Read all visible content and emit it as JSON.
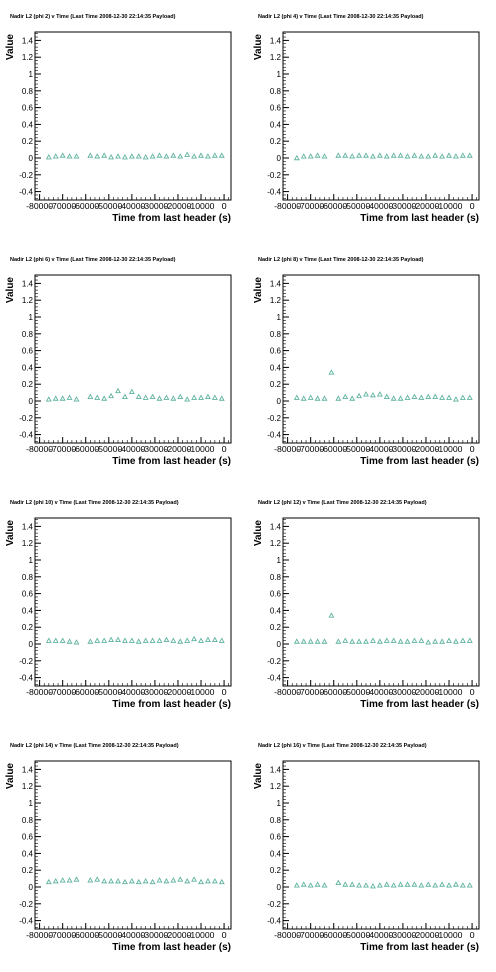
{
  "chart_data": [
    {
      "type": "scatter",
      "title": "Nadir L2 (phi 2) v Time (Last Time 2008-12-30 22:14:35 Payload)",
      "xlabel": "Time from last header (s)",
      "ylabel": "Value",
      "xlim": [
        -82000,
        3000
      ],
      "ylim": [
        -0.5,
        1.5
      ],
      "xticks": [
        -80000,
        -70000,
        -60000,
        -50000,
        -40000,
        -30000,
        -20000,
        -10000,
        0
      ],
      "xtick_labels": [
        "-80000",
        "-70000",
        "-60000",
        "-50000",
        "-40000",
        "-30000",
        "-20000",
        "-10000",
        "0"
      ],
      "yticks": [
        -0.4,
        -0.2,
        0,
        0.2,
        0.4,
        0.6,
        0.8,
        1,
        1.2,
        1.4
      ],
      "ytick_labels": [
        "-0.4",
        "-0.2",
        "0",
        "0.2",
        "0.4",
        "0.6",
        "0.8",
        "1",
        "1.2",
        "1.4"
      ],
      "marker_color": "#5fb3a0",
      "x": [
        -76000,
        -73000,
        -70000,
        -67000,
        -64000,
        -58000,
        -55000,
        -52000,
        -49000,
        -46000,
        -43000,
        -40000,
        -37000,
        -34000,
        -31000,
        -28000,
        -25000,
        -22000,
        -19000,
        -16000,
        -13000,
        -10000,
        -7000,
        -4000,
        -1000
      ],
      "y": [
        0.01,
        0.02,
        0.03,
        0.02,
        0.02,
        0.03,
        0.02,
        0.03,
        0.01,
        0.02,
        0.01,
        0.02,
        0.02,
        0.01,
        0.02,
        0.03,
        0.02,
        0.03,
        0.02,
        0.04,
        0.02,
        0.03,
        0.02,
        0.03,
        0.03
      ]
    },
    {
      "type": "scatter",
      "title": "Nadir L2 (phi 4) v Time (Last Time 2008-12-30 22:14:35 Payload)",
      "xlabel": "Time from last header (s)",
      "ylabel": "Value",
      "xlim": [
        -82000,
        3000
      ],
      "ylim": [
        -0.5,
        1.5
      ],
      "xticks": [
        -80000,
        -70000,
        -60000,
        -50000,
        -40000,
        -30000,
        -20000,
        -10000,
        0
      ],
      "xtick_labels": [
        "-80000",
        "-70000",
        "-60000",
        "-50000",
        "-40000",
        "-30000",
        "-20000",
        "-10000",
        "0"
      ],
      "yticks": [
        -0.4,
        -0.2,
        0,
        0.2,
        0.4,
        0.6,
        0.8,
        1,
        1.2,
        1.4
      ],
      "ytick_labels": [
        "-0.4",
        "-0.2",
        "0",
        "0.2",
        "0.4",
        "0.6",
        "0.8",
        "1",
        "1.2",
        "1.4"
      ],
      "marker_color": "#5fb3a0",
      "x": [
        -76000,
        -73000,
        -70000,
        -67000,
        -64000,
        -58000,
        -55000,
        -52000,
        -49000,
        -46000,
        -43000,
        -40000,
        -37000,
        -34000,
        -31000,
        -28000,
        -25000,
        -22000,
        -19000,
        -16000,
        -13000,
        -10000,
        -7000,
        -4000,
        -1000
      ],
      "y": [
        0.0,
        0.02,
        0.02,
        0.03,
        0.02,
        0.03,
        0.03,
        0.02,
        0.03,
        0.03,
        0.02,
        0.03,
        0.02,
        0.03,
        0.03,
        0.02,
        0.03,
        0.02,
        0.02,
        0.03,
        0.02,
        0.03,
        0.02,
        0.03,
        0.03
      ]
    },
    {
      "type": "scatter",
      "title": "Nadir L2 (phi 6) v Time (Last Time 2008-12-30 22:14:35 Payload)",
      "xlabel": "Time from last header (s)",
      "ylabel": "Value",
      "xlim": [
        -82000,
        3000
      ],
      "ylim": [
        -0.5,
        1.5
      ],
      "xticks": [
        -80000,
        -70000,
        -60000,
        -50000,
        -40000,
        -30000,
        -20000,
        -10000,
        0
      ],
      "xtick_labels": [
        "-80000",
        "-70000",
        "-60000",
        "-50000",
        "-40000",
        "-30000",
        "-20000",
        "-10000",
        "0"
      ],
      "yticks": [
        -0.4,
        -0.2,
        0,
        0.2,
        0.4,
        0.6,
        0.8,
        1,
        1.2,
        1.4
      ],
      "ytick_labels": [
        "-0.4",
        "-0.2",
        "0",
        "0.2",
        "0.4",
        "0.6",
        "0.8",
        "1",
        "1.2",
        "1.4"
      ],
      "marker_color": "#5fb3a0",
      "x": [
        -76000,
        -73000,
        -70000,
        -67000,
        -64000,
        -58000,
        -55000,
        -52000,
        -49000,
        -46000,
        -43000,
        -40000,
        -37000,
        -34000,
        -31000,
        -28000,
        -25000,
        -22000,
        -19000,
        -16000,
        -13000,
        -10000,
        -7000,
        -4000,
        -1000
      ],
      "y": [
        0.02,
        0.03,
        0.03,
        0.04,
        0.02,
        0.05,
        0.04,
        0.03,
        0.06,
        0.12,
        0.05,
        0.11,
        0.05,
        0.04,
        0.05,
        0.03,
        0.04,
        0.03,
        0.05,
        0.02,
        0.04,
        0.04,
        0.05,
        0.04,
        0.03
      ]
    },
    {
      "type": "scatter",
      "title": "Nadir L2 (phi 8) v Time (Last Time 2008-12-30 22:14:35 Payload)",
      "xlabel": "Time from last header (s)",
      "ylabel": "Value",
      "xlim": [
        -82000,
        3000
      ],
      "ylim": [
        -0.5,
        1.5
      ],
      "xticks": [
        -80000,
        -70000,
        -60000,
        -50000,
        -40000,
        -30000,
        -20000,
        -10000,
        0
      ],
      "xtick_labels": [
        "-80000",
        "-70000",
        "-60000",
        "-50000",
        "-40000",
        "-30000",
        "-20000",
        "-10000",
        "0"
      ],
      "yticks": [
        -0.4,
        -0.2,
        0,
        0.2,
        0.4,
        0.6,
        0.8,
        1,
        1.2,
        1.4
      ],
      "ytick_labels": [
        "-0.4",
        "-0.2",
        "0",
        "0.2",
        "0.4",
        "0.6",
        "0.8",
        "1",
        "1.2",
        "1.4"
      ],
      "marker_color": "#5fb3a0",
      "x": [
        -76000,
        -73000,
        -70000,
        -67000,
        -64000,
        -61000,
        -58000,
        -55000,
        -52000,
        -49000,
        -46000,
        -43000,
        -40000,
        -37000,
        -34000,
        -31000,
        -28000,
        -25000,
        -22000,
        -19000,
        -16000,
        -13000,
        -10000,
        -7000,
        -4000,
        -1000
      ],
      "y": [
        0.04,
        0.03,
        0.04,
        0.03,
        0.03,
        0.34,
        0.03,
        0.05,
        0.03,
        0.06,
        0.08,
        0.07,
        0.08,
        0.05,
        0.03,
        0.03,
        0.04,
        0.05,
        0.04,
        0.05,
        0.05,
        0.04,
        0.04,
        0.02,
        0.04,
        0.04
      ]
    },
    {
      "type": "scatter",
      "title": "Nadir L2 (phi 10) v Time (Last Time 2008-12-30 22:14:35 Payload)",
      "xlabel": "Time from last header (s)",
      "ylabel": "Value",
      "xlim": [
        -82000,
        3000
      ],
      "ylim": [
        -0.5,
        1.5
      ],
      "xticks": [
        -80000,
        -70000,
        -60000,
        -50000,
        -40000,
        -30000,
        -20000,
        -10000,
        0
      ],
      "xtick_labels": [
        "-80000",
        "-70000",
        "-60000",
        "-50000",
        "-40000",
        "-30000",
        "-20000",
        "-10000",
        "0"
      ],
      "yticks": [
        -0.4,
        -0.2,
        0,
        0.2,
        0.4,
        0.6,
        0.8,
        1,
        1.2,
        1.4
      ],
      "ytick_labels": [
        "-0.4",
        "-0.2",
        "0",
        "0.2",
        "0.4",
        "0.6",
        "0.8",
        "1",
        "1.2",
        "1.4"
      ],
      "marker_color": "#5fb3a0",
      "x": [
        -76000,
        -73000,
        -70000,
        -67000,
        -64000,
        -58000,
        -55000,
        -52000,
        -49000,
        -46000,
        -43000,
        -40000,
        -37000,
        -34000,
        -31000,
        -28000,
        -25000,
        -22000,
        -19000,
        -16000,
        -13000,
        -10000,
        -7000,
        -4000,
        -1000
      ],
      "y": [
        0.04,
        0.04,
        0.04,
        0.03,
        0.02,
        0.03,
        0.04,
        0.04,
        0.05,
        0.05,
        0.04,
        0.04,
        0.03,
        0.04,
        0.04,
        0.04,
        0.05,
        0.04,
        0.03,
        0.04,
        0.06,
        0.04,
        0.05,
        0.05,
        0.04
      ]
    },
    {
      "type": "scatter",
      "title": "Nadir L2 (phi 12) v Time (Last Time 2008-12-30 22:14:35 Payload)",
      "xlabel": "Time from last header (s)",
      "ylabel": "Value",
      "xlim": [
        -82000,
        3000
      ],
      "ylim": [
        -0.5,
        1.5
      ],
      "xticks": [
        -80000,
        -70000,
        -60000,
        -50000,
        -40000,
        -30000,
        -20000,
        -10000,
        0
      ],
      "xtick_labels": [
        "-80000",
        "-70000",
        "-60000",
        "-50000",
        "-40000",
        "-30000",
        "-20000",
        "-10000",
        "0"
      ],
      "yticks": [
        -0.4,
        -0.2,
        0,
        0.2,
        0.4,
        0.6,
        0.8,
        1,
        1.2,
        1.4
      ],
      "ytick_labels": [
        "-0.4",
        "-0.2",
        "0",
        "0.2",
        "0.4",
        "0.6",
        "0.8",
        "1",
        "1.2",
        "1.4"
      ],
      "marker_color": "#5fb3a0",
      "x": [
        -76000,
        -73000,
        -70000,
        -67000,
        -64000,
        -61000,
        -58000,
        -55000,
        -52000,
        -49000,
        -46000,
        -43000,
        -40000,
        -37000,
        -34000,
        -31000,
        -28000,
        -25000,
        -22000,
        -19000,
        -16000,
        -13000,
        -10000,
        -7000,
        -4000,
        -1000
      ],
      "y": [
        0.03,
        0.03,
        0.03,
        0.03,
        0.03,
        0.34,
        0.03,
        0.04,
        0.03,
        0.03,
        0.03,
        0.04,
        0.03,
        0.04,
        0.04,
        0.03,
        0.03,
        0.04,
        0.04,
        0.02,
        0.03,
        0.03,
        0.04,
        0.03,
        0.04,
        0.04
      ]
    },
    {
      "type": "scatter",
      "title": "Nadir L2 (phi 14) v Time (Last Time 2008-12-30 22:14:35 Payload)",
      "xlabel": "Time from last header (s)",
      "ylabel": "Value",
      "xlim": [
        -82000,
        3000
      ],
      "ylim": [
        -0.5,
        1.5
      ],
      "xticks": [
        -80000,
        -70000,
        -60000,
        -50000,
        -40000,
        -30000,
        -20000,
        -10000,
        0
      ],
      "xtick_labels": [
        "-80000",
        "-70000",
        "-60000",
        "-50000",
        "-40000",
        "-30000",
        "-20000",
        "-10000",
        "0"
      ],
      "yticks": [
        -0.4,
        -0.2,
        0,
        0.2,
        0.4,
        0.6,
        0.8,
        1,
        1.2,
        1.4
      ],
      "ytick_labels": [
        "-0.4",
        "-0.2",
        "0",
        "0.2",
        "0.4",
        "0.6",
        "0.8",
        "1",
        "1.2",
        "1.4"
      ],
      "marker_color": "#5fb3a0",
      "x": [
        -76000,
        -73000,
        -70000,
        -67000,
        -64000,
        -58000,
        -55000,
        -52000,
        -49000,
        -46000,
        -43000,
        -40000,
        -37000,
        -34000,
        -31000,
        -28000,
        -25000,
        -22000,
        -19000,
        -16000,
        -13000,
        -10000,
        -7000,
        -4000,
        -1000
      ],
      "y": [
        0.06,
        0.07,
        0.08,
        0.08,
        0.09,
        0.08,
        0.09,
        0.07,
        0.07,
        0.07,
        0.06,
        0.07,
        0.06,
        0.07,
        0.06,
        0.08,
        0.07,
        0.08,
        0.09,
        0.07,
        0.09,
        0.06,
        0.07,
        0.07,
        0.06
      ]
    },
    {
      "type": "scatter",
      "title": "Nadir L2 (phi 16) v Time (Last Time 2008-12-30 22:14:35 Payload)",
      "xlabel": "Time from last header (s)",
      "ylabel": "Value",
      "xlim": [
        -82000,
        3000
      ],
      "ylim": [
        -0.5,
        1.5
      ],
      "xticks": [
        -80000,
        -70000,
        -60000,
        -50000,
        -40000,
        -30000,
        -20000,
        -10000,
        0
      ],
      "xtick_labels": [
        "-80000",
        "-70000",
        "-60000",
        "-50000",
        "-40000",
        "-30000",
        "-20000",
        "-10000",
        "0"
      ],
      "yticks": [
        -0.4,
        -0.2,
        0,
        0.2,
        0.4,
        0.6,
        0.8,
        1,
        1.2,
        1.4
      ],
      "ytick_labels": [
        "-0.4",
        "-0.2",
        "0",
        "0.2",
        "0.4",
        "0.6",
        "0.8",
        "1",
        "1.2",
        "1.4"
      ],
      "marker_color": "#5fb3a0",
      "x": [
        -76000,
        -73000,
        -70000,
        -67000,
        -64000,
        -58000,
        -55000,
        -52000,
        -49000,
        -46000,
        -43000,
        -40000,
        -37000,
        -34000,
        -31000,
        -28000,
        -25000,
        -22000,
        -19000,
        -16000,
        -13000,
        -10000,
        -7000,
        -4000,
        -1000
      ],
      "y": [
        0.02,
        0.03,
        0.02,
        0.03,
        0.02,
        0.05,
        0.03,
        0.03,
        0.02,
        0.02,
        0.01,
        0.02,
        0.03,
        0.02,
        0.03,
        0.03,
        0.03,
        0.02,
        0.03,
        0.02,
        0.03,
        0.02,
        0.03,
        0.02,
        0.02
      ]
    }
  ]
}
